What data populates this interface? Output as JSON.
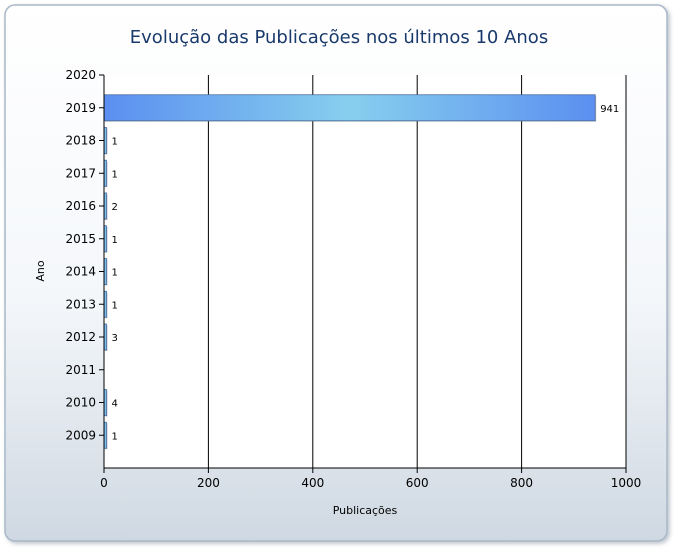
{
  "chart_data": {
    "type": "bar",
    "orientation": "horizontal",
    "title": "Evolução das Publicações nos últimos 10 Anos",
    "xlabel": "Publicações",
    "ylabel": "Ano",
    "categories": [
      "2020",
      "2019",
      "2018",
      "2017",
      "2016",
      "2015",
      "2014",
      "2013",
      "2012",
      "2011",
      "2010",
      "2009"
    ],
    "values": [
      null,
      941,
      1,
      1,
      2,
      1,
      1,
      1,
      3,
      null,
      4,
      1
    ],
    "data_labels": [
      "",
      "941",
      "1",
      "1",
      "2",
      "1",
      "1",
      "1",
      "3",
      "",
      "4",
      "1"
    ],
    "xlim": [
      0,
      1000
    ],
    "xticks": [
      0,
      200,
      400,
      600,
      800,
      1000
    ],
    "xtick_labels": [
      "0",
      "200",
      "400",
      "600",
      "800",
      "1000"
    ],
    "grid": "vertical",
    "legend": "none"
  },
  "colors": {
    "panel_gradient_top": "#ffffff",
    "panel_gradient_bottom": "#d5dde5",
    "panel_border": "#a9b8c8",
    "title": "#1a3a6b",
    "bar_left": "#5b8ff0",
    "bar_mid": "#87cfee",
    "bar_right": "#5b8ff0",
    "axis": "#000000"
  }
}
